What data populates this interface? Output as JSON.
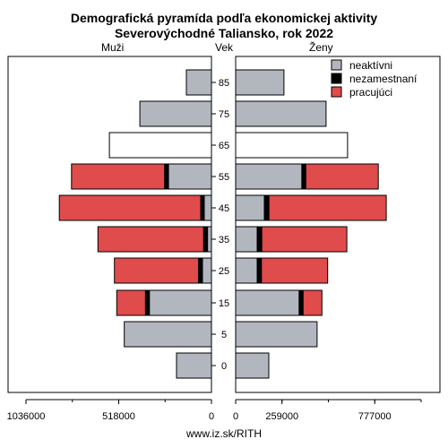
{
  "chart_data": {
    "type": "bar",
    "title_line1": "Demografická pyramída podľa ekonomickej aktivity",
    "title_line2": "Severovýchodné Taliansko, rok 2022",
    "left_label": "Muži",
    "center_label": "Vek",
    "right_label": "Ženy",
    "footer": "www.iz.sk/RITH",
    "age_groups": [
      "0",
      "5",
      "15",
      "25",
      "35",
      "45",
      "55",
      "65",
      "75",
      "85"
    ],
    "legend": [
      {
        "name": "neaktívni",
        "color": "#b2b7bf"
      },
      {
        "name": "nezamestnaní",
        "color": "#000000"
      },
      {
        "name": "pracujúci",
        "color": "#e04b4b"
      }
    ],
    "left_ticks": [
      "1036000",
      "518000",
      "0"
    ],
    "right_ticks": [
      "0",
      "259000",
      "777000"
    ],
    "xlim": 1036000,
    "men": {
      "inactive": [
        195000,
        487000,
        347000,
        50000,
        22000,
        40000,
        240000,
        570000,
        400000,
        140000
      ],
      "unemployed": [
        0,
        0,
        22000,
        22000,
        22000,
        20000,
        22000,
        0,
        0,
        0
      ],
      "employed": [
        0,
        0,
        160000,
        470000,
        590000,
        790000,
        520000,
        0,
        0,
        0
      ],
      "white_total_index": 7
    },
    "women": {
      "inactive": [
        185000,
        455000,
        355000,
        120000,
        120000,
        160000,
        370000,
        625000,
        505000,
        270000
      ],
      "unemployed": [
        0,
        0,
        22000,
        24000,
        26000,
        26000,
        22000,
        0,
        0,
        0
      ],
      "employed": [
        0,
        0,
        105000,
        370000,
        475000,
        655000,
        405000,
        0,
        0,
        0
      ],
      "white_total_index": 7
    }
  }
}
